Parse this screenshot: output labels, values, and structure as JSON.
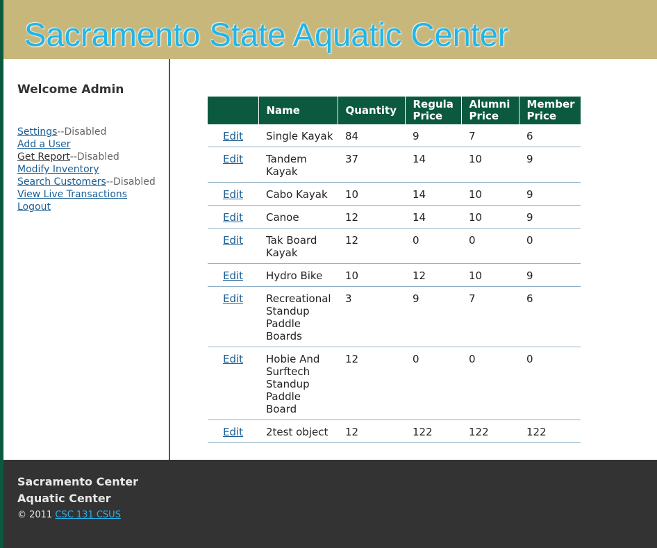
{
  "header": {
    "title": "Sacramento State Aquatic Center"
  },
  "sidebar": {
    "welcome": "Welcome Admin",
    "menu": [
      {
        "label": "Settings",
        "note": "--Disabled"
      },
      {
        "label": "Add a User",
        "note": ""
      },
      {
        "label": "Get Report",
        "note": "--Disabled"
      },
      {
        "label": "Modify Inventory",
        "note": ""
      },
      {
        "label": "Search Customers",
        "note": "--Disabled"
      },
      {
        "label": "View Live Transactions",
        "note": ""
      },
      {
        "label": "Logout",
        "note": ""
      }
    ]
  },
  "table": {
    "headers": [
      "",
      "Name",
      "Quantity",
      "Regula Price",
      "Alumni Price",
      "Member Price"
    ],
    "edit_label": "Edit",
    "rows": [
      {
        "name": "Single Kayak",
        "quantity": "84",
        "regular": "9",
        "alumni": "7",
        "member": "6"
      },
      {
        "name": "Tandem Kayak",
        "quantity": "37",
        "regular": "14",
        "alumni": "10",
        "member": "9"
      },
      {
        "name": "Cabo Kayak",
        "quantity": "10",
        "regular": "14",
        "alumni": "10",
        "member": "9"
      },
      {
        "name": "Canoe",
        "quantity": "12",
        "regular": "14",
        "alumni": "10",
        "member": "9"
      },
      {
        "name": "Tak Board Kayak",
        "quantity": "12",
        "regular": "0",
        "alumni": "0",
        "member": "0"
      },
      {
        "name": "Hydro Bike",
        "quantity": "10",
        "regular": "12",
        "alumni": "10",
        "member": "9"
      },
      {
        "name": "Recreational Standup Paddle Boards",
        "quantity": "3",
        "regular": "9",
        "alumni": "7",
        "member": "6"
      },
      {
        "name": "Hobie And Surftech Standup Paddle Board",
        "quantity": "12",
        "regular": "0",
        "alumni": "0",
        "member": "0"
      },
      {
        "name": "2test object",
        "quantity": "12",
        "regular": "122",
        "alumni": "122",
        "member": "122"
      }
    ]
  },
  "footer": {
    "org_line1": "Sacramento Center",
    "org_line2": "Aquatic Center",
    "copyright": "© 2011",
    "link": "CSC 131 CSUS"
  },
  "colors": {
    "header_bg": "#c8b77a",
    "title": "#21b5e8",
    "table_header_bg": "#0b5a3f",
    "footer_bg": "#333333",
    "link": "#1a5e96"
  }
}
